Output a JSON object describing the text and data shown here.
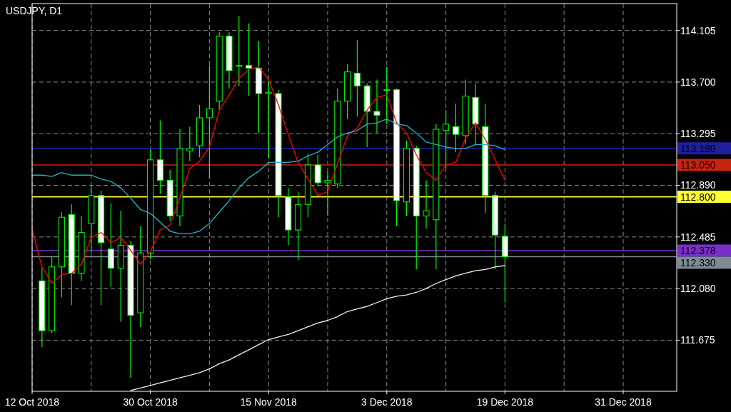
{
  "chart_data": {
    "type": "candlestick",
    "title": "USDJPY, D1",
    "categories": [
      "12 Oct 2018",
      null,
      null,
      null,
      null,
      null,
      null,
      null,
      null,
      null,
      null,
      null,
      "30 Oct 2018",
      null,
      null,
      null,
      null,
      null,
      null,
      null,
      null,
      null,
      null,
      null,
      "15 Nov 2018",
      null,
      null,
      null,
      null,
      null,
      null,
      null,
      null,
      null,
      null,
      null,
      "3 Dec 2018",
      null,
      null,
      null,
      null,
      null,
      null,
      null,
      null,
      null,
      null,
      null,
      "19 Dec 2018",
      null,
      null,
      null,
      null,
      null,
      null,
      null,
      null,
      null,
      null,
      null,
      "31 Dec 2018",
      null,
      null,
      null,
      null,
      null
    ],
    "ylim": [
      111.274,
      114.316
    ],
    "yticks": [
      {
        "value": 111.675,
        "label": "111.675"
      },
      {
        "value": 112.08,
        "label": "112.080"
      },
      {
        "value": 112.485,
        "label": "112.485"
      },
      {
        "value": 112.89,
        "label": "112.890"
      },
      {
        "value": 113.295,
        "label": "113.295"
      },
      {
        "value": 113.7,
        "label": "113.700"
      },
      {
        "value": 114.105,
        "label": "114.105"
      }
    ],
    "grid": true,
    "series": [
      {
        "type": "line",
        "color": "#ff0000",
        "values": [
          112.54,
          112.25,
          112.12,
          112.19,
          112.2,
          112.27,
          112.48,
          112.52,
          112.44,
          112.48,
          112.38,
          112.27,
          112.37,
          112.54,
          112.58,
          112.79,
          113.02,
          113.08,
          113.19,
          113.48,
          113.6,
          113.73,
          113.8,
          113.82,
          113.72,
          113.52,
          113.29,
          113.07,
          112.94,
          112.81,
          112.84,
          113.06,
          113.28,
          113.34,
          113.48,
          113.58,
          113.6,
          113.38,
          113.3,
          113.13,
          112.99,
          112.93,
          113.05,
          113.07,
          113.26,
          113.38,
          113.25,
          113.09,
          112.93,
          null,
          null,
          null,
          null,
          null,
          null,
          null,
          null,
          null,
          null,
          null,
          null,
          null,
          null,
          null,
          null,
          null
        ]
      },
      {
        "type": "line",
        "color": "#20b4c8",
        "values": [
          112.97,
          112.97,
          112.96,
          112.99,
          112.97,
          112.97,
          112.97,
          112.94,
          112.92,
          112.87,
          112.79,
          112.7,
          112.67,
          112.6,
          112.53,
          112.51,
          112.51,
          112.53,
          112.59,
          112.68,
          112.77,
          112.87,
          112.95,
          113.0,
          113.07,
          113.07,
          113.07,
          113.08,
          113.12,
          113.15,
          113.21,
          113.27,
          113.3,
          113.32,
          113.37,
          113.38,
          113.41,
          113.37,
          113.36,
          113.3,
          113.23,
          113.21,
          113.19,
          113.18,
          113.18,
          113.21,
          113.21,
          113.2,
          113.17,
          null,
          null,
          null,
          null,
          null,
          null,
          null,
          null,
          null,
          null,
          null,
          null,
          null,
          null,
          null,
          null,
          null
        ]
      },
      {
        "type": "line",
        "color": "#f0f0f0",
        "values": [
          null,
          null,
          null,
          null,
          null,
          null,
          null,
          null,
          null,
          null,
          111.28,
          111.3,
          111.32,
          111.34,
          111.36,
          111.38,
          111.4,
          111.42,
          111.45,
          111.49,
          111.52,
          111.56,
          111.6,
          111.64,
          111.68,
          111.7,
          111.72,
          111.75,
          111.78,
          111.81,
          111.83,
          111.86,
          111.9,
          111.92,
          111.94,
          111.97,
          112.0,
          112.02,
          112.03,
          112.05,
          112.08,
          112.12,
          112.15,
          112.18,
          112.2,
          112.22,
          112.23,
          112.25,
          112.26,
          null,
          null,
          null,
          null,
          null,
          null,
          null,
          null,
          null,
          null,
          null,
          null,
          null,
          null,
          null,
          null,
          null
        ]
      },
      {
        "type": "candlestick",
        "color": "#00ff00",
        "ohlc": [
          null,
          [
            112.14,
            112.24,
            111.62,
            111.75
          ],
          [
            111.75,
            112.33,
            111.73,
            112.25
          ],
          [
            112.25,
            112.68,
            112.01,
            112.64
          ],
          [
            112.66,
            112.74,
            111.95,
            112.2
          ],
          [
            112.2,
            112.65,
            112.14,
            112.52
          ],
          [
            112.59,
            112.89,
            112.36,
            112.81
          ],
          [
            112.81,
            112.85,
            111.95,
            112.44
          ],
          [
            112.39,
            112.75,
            112.09,
            112.24
          ],
          [
            112.24,
            112.69,
            111.82,
            112.42
          ],
          [
            112.42,
            112.45,
            111.38,
            111.87
          ],
          [
            111.89,
            112.57,
            111.78,
            112.36
          ],
          [
            112.36,
            113.17,
            112.31,
            113.09
          ],
          [
            113.09,
            113.4,
            112.82,
            112.93
          ],
          [
            112.93,
            113.01,
            112.61,
            112.65
          ],
          [
            112.65,
            113.33,
            112.57,
            113.18
          ],
          [
            113.16,
            113.35,
            113.08,
            113.18
          ],
          [
            113.2,
            113.52,
            113.11,
            113.42
          ],
          [
            113.42,
            113.83,
            112.95,
            113.49
          ],
          [
            113.55,
            114.09,
            113.48,
            114.06
          ],
          [
            114.06,
            114.09,
            113.65,
            113.79
          ],
          [
            113.83,
            114.22,
            113.67,
            113.83
          ],
          [
            113.83,
            114.16,
            113.59,
            113.81
          ],
          [
            113.81,
            114.02,
            113.3,
            113.61
          ],
          [
            113.61,
            113.71,
            113.1,
            113.62
          ],
          [
            113.61,
            113.64,
            112.64,
            112.81
          ],
          [
            112.8,
            112.87,
            112.42,
            112.54
          ],
          [
            112.54,
            112.84,
            112.3,
            112.74
          ],
          [
            112.74,
            113.14,
            112.64,
            113.05
          ],
          [
            113.05,
            113.13,
            112.88,
            112.91
          ],
          [
            112.91,
            113.0,
            112.65,
            112.93
          ],
          [
            112.9,
            113.65,
            112.87,
            113.55
          ],
          [
            113.55,
            113.84,
            113.41,
            113.78
          ],
          [
            113.77,
            114.03,
            113.43,
            113.67
          ],
          [
            113.67,
            113.69,
            113.19,
            113.47
          ],
          [
            113.47,
            113.72,
            113.3,
            113.44
          ],
          [
            113.64,
            113.82,
            113.37,
            113.64
          ],
          [
            113.64,
            113.65,
            112.57,
            112.77
          ],
          [
            112.76,
            113.24,
            112.65,
            113.18
          ],
          [
            113.18,
            113.2,
            112.23,
            112.65
          ],
          [
            112.65,
            112.93,
            112.55,
            112.69
          ],
          [
            112.62,
            113.37,
            112.23,
            113.33
          ],
          [
            113.32,
            113.48,
            113.02,
            113.37
          ],
          [
            113.35,
            113.53,
            113.15,
            113.29
          ],
          [
            113.28,
            113.72,
            113.21,
            113.59
          ],
          [
            113.58,
            113.69,
            113.21,
            113.37
          ],
          [
            113.35,
            113.53,
            112.67,
            112.81
          ],
          [
            112.81,
            112.84,
            112.23,
            112.5
          ],
          [
            112.49,
            112.59,
            111.97,
            112.33
          ],
          null,
          null,
          null,
          null,
          null,
          null,
          null,
          null,
          null,
          null,
          null,
          null,
          null,
          null,
          null,
          null,
          null
        ]
      }
    ],
    "ref_lines": [
      {
        "axis": "y",
        "value": 113.18,
        "label": "113.180",
        "color": "#1f1fa0"
      },
      {
        "axis": "y",
        "value": 113.05,
        "label": "113.050",
        "color": "#c8230f"
      },
      {
        "axis": "y",
        "value": 112.8,
        "label": "112.800",
        "color": "#ffff33"
      },
      {
        "axis": "y",
        "value": 112.378,
        "label": "112.378",
        "color": "#7a2fc9"
      },
      {
        "axis": "y",
        "value": 112.33,
        "label": "112.330",
        "color": "#7e8a96"
      }
    ]
  }
}
